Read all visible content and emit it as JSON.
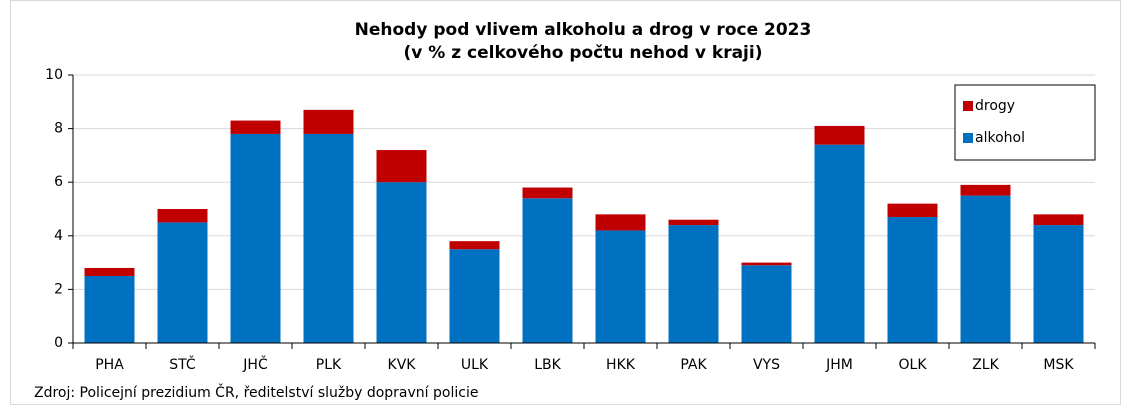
{
  "chart_data": {
    "type": "stacked_bar",
    "title": "Nehody pod vlivem alkoholu a drog v roce 2023",
    "subtitle": "(v % z celkového počtu nehod v kraji)",
    "source": "Zdroj: Policejní prezidium ČR, ředitelství služby dopravní policie",
    "categories": [
      "PHA",
      "STČ",
      "JHČ",
      "PLK",
      "KVK",
      "ULK",
      "LBK",
      "HKK",
      "PAK",
      "VYS",
      "JHM",
      "OLK",
      "ZLK",
      "MSK"
    ],
    "series": [
      {
        "name": "alkohol",
        "color": "#0070c0",
        "values": [
          2.5,
          4.5,
          7.8,
          7.8,
          6.0,
          3.5,
          5.4,
          4.2,
          4.4,
          2.9,
          7.4,
          4.7,
          5.5,
          4.4
        ]
      },
      {
        "name": "drogy",
        "color": "#c00000",
        "values": [
          0.3,
          0.5,
          0.5,
          0.9,
          1.2,
          0.3,
          0.4,
          0.6,
          0.2,
          0.1,
          0.7,
          0.5,
          0.4,
          0.4
        ]
      }
    ],
    "ylim": [
      0,
      10
    ],
    "yticks": [
      0,
      2,
      4,
      6,
      8,
      10
    ],
    "grid": true,
    "legend": "upper right"
  }
}
